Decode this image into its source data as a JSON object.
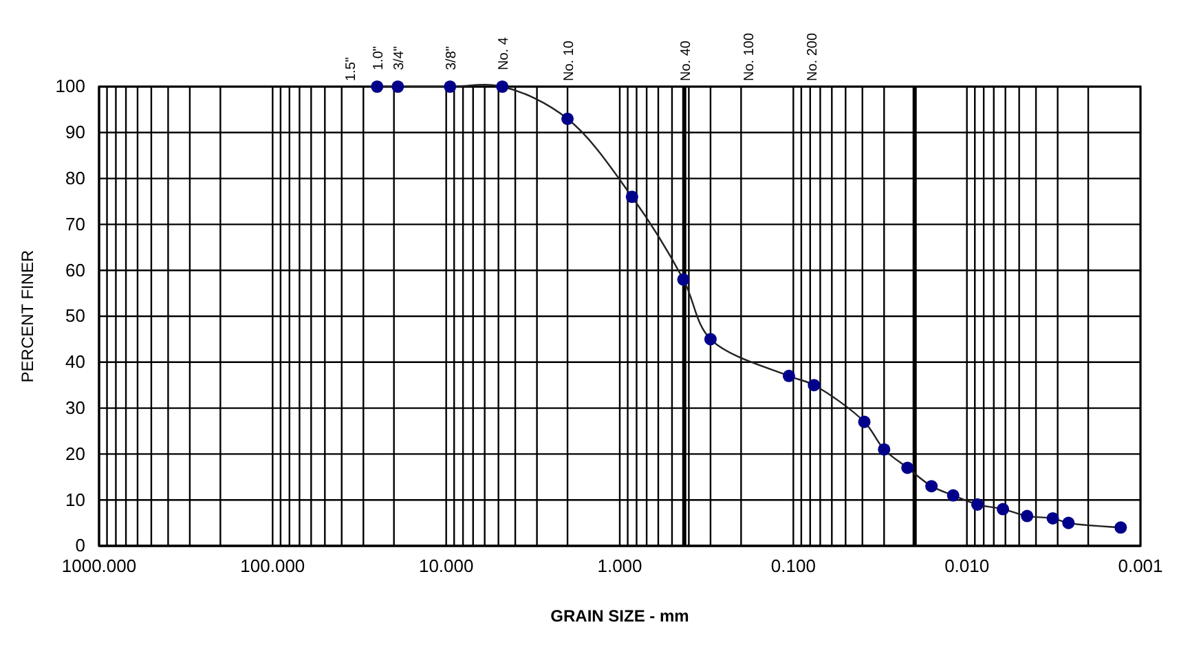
{
  "chart_data": {
    "type": "line",
    "xlabel": "GRAIN SIZE - mm",
    "ylabel": "PERCENT FINER",
    "log": "x",
    "grid": true,
    "marker": "circle",
    "line_style": "solid",
    "xlim": [
      1000,
      0.001
    ],
    "xticks": [
      {
        "value": 1000,
        "label": "1000.000"
      },
      {
        "value": 100,
        "label": "100.000"
      },
      {
        "value": 10,
        "label": "10.000"
      },
      {
        "value": 1,
        "label": "1.000"
      },
      {
        "value": 0.1,
        "label": "0.100"
      },
      {
        "value": 0.01,
        "label": "0.010"
      },
      {
        "value": 0.001,
        "label": "0.001"
      }
    ],
    "annotations": [
      "1.5\"",
      {
        "text": "1.0\"",
        "x": 25,
        "y": 100
      },
      {
        "text": "3/4\"",
        "x": 19,
        "y": 100
      },
      {
        "text": "3/8\"",
        "x": 9.5,
        "y": 100
      },
      {
        "text": "No. 4",
        "x": 4.75,
        "y": 100
      },
      {
        "text": "No. 10",
        "x": 2,
        "y": 93
      },
      "No. 100",
      "No. 200"
    ],
    "ylim": [
      0,
      100
    ],
    "yticks": [
      0,
      10,
      20,
      30,
      40,
      50,
      60,
      70,
      80,
      90,
      100
    ],
    "ref_lines": [
      {
        "axis": "x",
        "value": 0.425,
        "color": "#000000",
        "label": "No. 40"
      },
      {
        "axis": "x",
        "value": 0.02,
        "color": "#000000"
      }
    ],
    "series": [
      {
        "color": "#00008b",
        "x": [
          25,
          19,
          9.5,
          4.75,
          2,
          0.85,
          0.43,
          0.3,
          0.106,
          0.076,
          0.039,
          0.03,
          0.022,
          0.016,
          0.012,
          0.0087,
          0.0062,
          0.0045,
          0.0032,
          0.0026,
          0.0013
        ],
        "values": [
          100,
          100,
          100,
          100,
          93,
          76,
          58,
          45,
          37,
          35,
          27,
          21,
          17,
          13,
          11,
          9,
          8,
          6.5,
          6,
          5,
          4
        ]
      }
    ]
  }
}
